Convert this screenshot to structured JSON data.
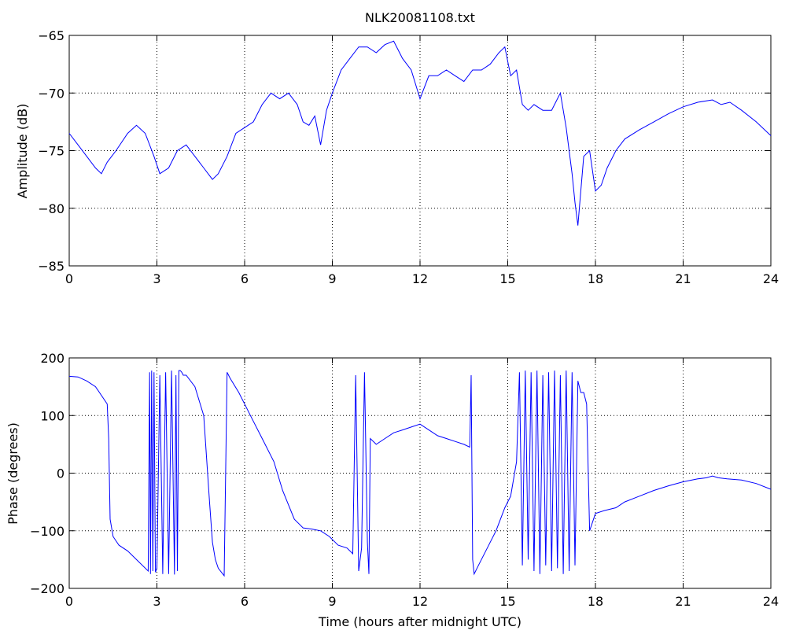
{
  "chart_data": [
    {
      "type": "line",
      "title": "NLK20081108.txt",
      "xlabel": "",
      "ylabel": "Amplitude (dB)",
      "xlim": [
        0,
        24
      ],
      "ylim": [
        -85,
        -65
      ],
      "xticks": [
        "0",
        "3",
        "6",
        "9",
        "12",
        "15",
        "18",
        "21",
        "24"
      ],
      "yticks": [
        "-85",
        "-80",
        "-75",
        "-70",
        "-65"
      ],
      "grid": true,
      "line_color": "#0000ff",
      "series": [
        {
          "x": [
            0,
            0.3,
            0.6,
            0.9,
            1.1,
            1.3,
            1.6,
            2.0,
            2.3,
            2.6,
            2.9,
            3.1,
            3.4,
            3.7,
            4.0,
            4.3,
            4.6,
            4.9,
            5.1,
            5.4,
            5.7,
            6.0,
            6.3,
            6.6,
            6.9,
            7.2,
            7.5,
            7.8,
            8.0,
            8.2,
            8.4,
            8.6,
            8.8,
            9.0,
            9.3,
            9.6,
            9.9,
            10.2,
            10.5,
            10.8,
            11.1,
            11.4,
            11.7,
            12.0,
            12.3,
            12.6,
            12.9,
            13.2,
            13.5,
            13.8,
            14.1,
            14.4,
            14.7,
            14.9,
            15.1,
            15.3,
            15.5,
            15.7,
            15.9,
            16.2,
            16.5,
            16.8,
            17.0,
            17.2,
            17.3,
            17.4,
            17.6,
            17.8,
            18.0,
            18.2,
            18.4,
            18.7,
            19.0,
            19.5,
            20.0,
            20.5,
            21.0,
            21.5,
            22.0,
            22.3,
            22.6,
            23.0,
            23.5,
            24.0
          ],
          "y": [
            -73.5,
            -74.5,
            -75.5,
            -76.5,
            -77.0,
            -76.0,
            -75.0,
            -73.5,
            -72.8,
            -73.5,
            -75.5,
            -77.0,
            -76.5,
            -75.0,
            -74.5,
            -75.5,
            -76.5,
            -77.5,
            -77.0,
            -75.5,
            -73.5,
            -73.0,
            -72.5,
            -71.0,
            -70.0,
            -70.5,
            -70.0,
            -71.0,
            -72.5,
            -72.8,
            -72.0,
            -74.5,
            -71.5,
            -70.0,
            -68.0,
            -67.0,
            -66.0,
            -66.0,
            -66.5,
            -65.8,
            -65.5,
            -67.0,
            -68.0,
            -70.5,
            -68.5,
            -68.5,
            -68.0,
            -68.5,
            -69.0,
            -68.0,
            -68.0,
            -67.5,
            -66.5,
            -66.0,
            -68.5,
            -68.0,
            -71.0,
            -71.5,
            -71.0,
            -71.5,
            -71.5,
            -70.0,
            -73.0,
            -77.0,
            -79.5,
            -81.5,
            -75.5,
            -75.0,
            -78.5,
            -78.0,
            -76.5,
            -75.0,
            -74.0,
            -73.2,
            -72.5,
            -71.8,
            -71.2,
            -70.8,
            -70.6,
            -71.0,
            -70.8,
            -71.5,
            -72.5,
            -73.7
          ]
        }
      ]
    },
    {
      "type": "line",
      "title": "",
      "xlabel": "Time (hours after midnight UTC)",
      "ylabel": "Phase (degrees)",
      "xlim": [
        0,
        24
      ],
      "ylim": [
        -200,
        200
      ],
      "xticks": [
        "0",
        "3",
        "6",
        "9",
        "12",
        "15",
        "18",
        "21",
        "24"
      ],
      "yticks": [
        "-200",
        "-100",
        "0",
        "100",
        "200"
      ],
      "grid": true,
      "line_color": "#0000ff",
      "series": [
        {
          "x": [
            0,
            0.3,
            0.6,
            0.9,
            1.1,
            1.3,
            1.35,
            1.4,
            1.5,
            1.7,
            2.0,
            2.3,
            2.7,
            2.75,
            2.78,
            2.82,
            2.86,
            2.9,
            2.95,
            3.0,
            3.1,
            3.2,
            3.3,
            3.4,
            3.5,
            3.6,
            3.65,
            3.7,
            3.75,
            3.8,
            3.85,
            3.9,
            4.0,
            4.3,
            4.6,
            4.8,
            4.9,
            5.0,
            5.1,
            5.3,
            5.4,
            5.45,
            5.5,
            5.8,
            6.2,
            6.6,
            7.0,
            7.3,
            7.7,
            8.0,
            8.3,
            8.6,
            8.9,
            9.2,
            9.5,
            9.7,
            9.8,
            9.9,
            10.0,
            10.1,
            10.2,
            10.25,
            10.3,
            10.5,
            10.8,
            11.1,
            11.4,
            11.7,
            12.0,
            12.3,
            12.6,
            12.9,
            13.2,
            13.5,
            13.7,
            13.75,
            13.8,
            13.85,
            14.0,
            14.3,
            14.6,
            14.9,
            15.1,
            15.3,
            15.4,
            15.5,
            15.6,
            15.7,
            15.8,
            15.9,
            16.0,
            16.1,
            16.2,
            16.3,
            16.4,
            16.5,
            16.6,
            16.7,
            16.8,
            16.9,
            17.0,
            17.1,
            17.2,
            17.3,
            17.4,
            17.5,
            17.6,
            17.7,
            17.8,
            18.0,
            18.3,
            18.7,
            19.0,
            19.5,
            20.0,
            20.5,
            21.0,
            21.5,
            21.8,
            22.0,
            22.2,
            22.5,
            23.0,
            23.5,
            24.0
          ],
          "y": [
            168,
            167,
            160,
            150,
            135,
            120,
            60,
            -80,
            -110,
            -125,
            -135,
            -150,
            -170,
            175,
            -175,
            178,
            -170,
            175,
            -172,
            -165,
            170,
            -175,
            175,
            -175,
            178,
            -176,
            170,
            -170,
            178,
            178,
            175,
            170,
            170,
            150,
            100,
            -50,
            -120,
            -150,
            -165,
            -178,
            175,
            170,
            165,
            140,
            100,
            60,
            20,
            -30,
            -80,
            -95,
            -97,
            -100,
            -110,
            -125,
            -130,
            -140,
            170,
            -170,
            -130,
            175,
            -120,
            -175,
            60,
            50,
            60,
            70,
            75,
            80,
            85,
            75,
            65,
            60,
            55,
            50,
            45,
            170,
            -150,
            -175,
            -160,
            -130,
            -100,
            -60,
            -40,
            20,
            175,
            -160,
            178,
            -150,
            175,
            -170,
            178,
            -175,
            170,
            -160,
            175,
            -170,
            178,
            -165,
            170,
            -175,
            178,
            -170,
            175,
            -160,
            160,
            140,
            140,
            120,
            -100,
            -70,
            -65,
            -60,
            -50,
            -40,
            -30,
            -22,
            -15,
            -10,
            -8,
            -5,
            -8,
            -10,
            -12,
            -18,
            -28
          ]
        }
      ]
    }
  ]
}
